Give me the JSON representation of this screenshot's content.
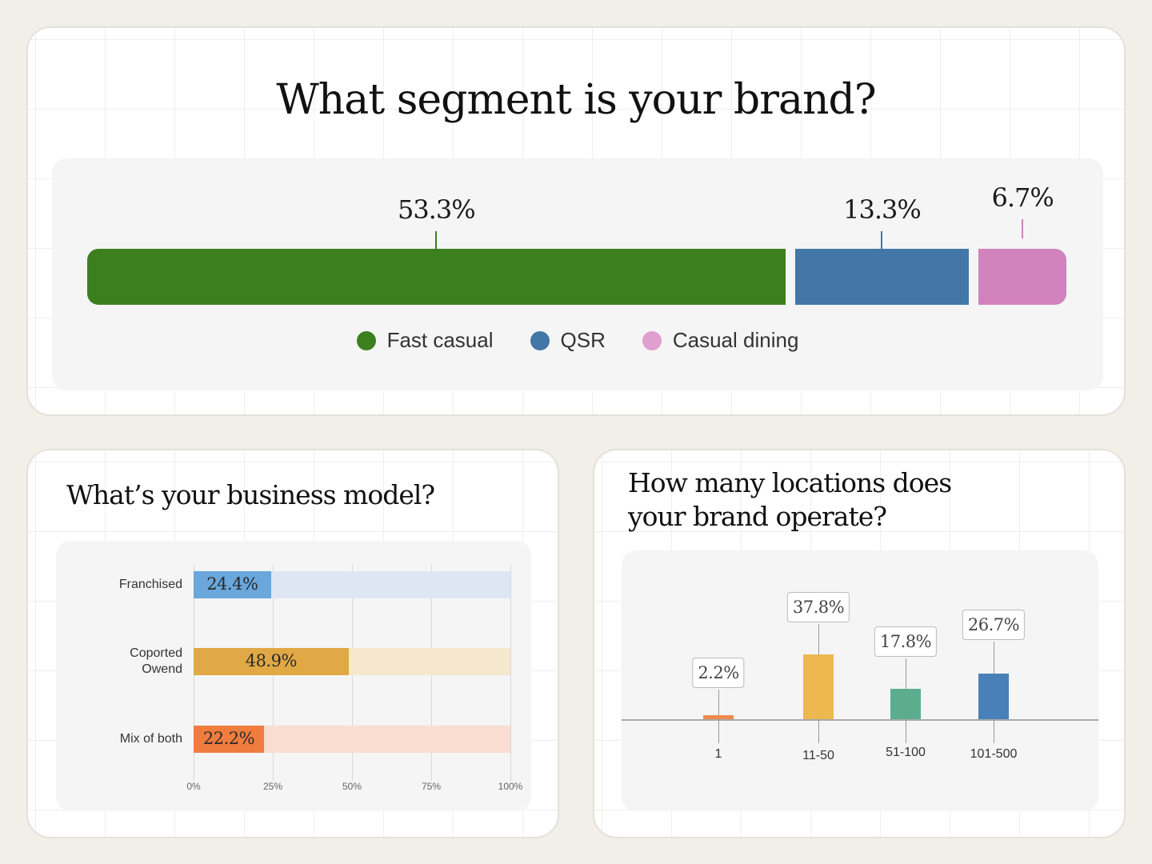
{
  "segment": {
    "title": "What segment is your brand?",
    "chart_data": {
      "type": "bar",
      "categories": [
        "Fast casual",
        "QSR",
        "Casual dining"
      ],
      "values": [
        53.3,
        13.3,
        6.7
      ],
      "labels": [
        "53.3%",
        "13.3%",
        "6.7%"
      ],
      "colors": [
        "#3c7f1e",
        "#4277a8",
        "#d083bc"
      ],
      "legend_colors": [
        "#3c7f1e",
        "#4277a8",
        "#e09fcf"
      ]
    }
  },
  "business_model": {
    "title": "What’s your business model?",
    "chart_data": {
      "type": "bar",
      "orientation": "horizontal",
      "categories": [
        "Franchised",
        "Coported Owend",
        "Mix of both"
      ],
      "category_lines": [
        [
          "Franchised"
        ],
        [
          "Coported",
          "Owend"
        ],
        [
          "Mix of both"
        ]
      ],
      "values": [
        24.4,
        48.9,
        22.2
      ],
      "labels": [
        "24.4%",
        "48.9%",
        "22.2%"
      ],
      "fill_colors": [
        "#6aa7dc",
        "#e0a946",
        "#f07c3e"
      ],
      "track_colors": [
        "#dde6f2",
        "#f6e7cf",
        "#f8ddd0"
      ],
      "xticks": [
        "0%",
        "25%",
        "50%",
        "75%",
        "100%"
      ],
      "xlim": [
        0,
        100
      ]
    }
  },
  "locations": {
    "title_lines": [
      "How many locations does",
      "your brand operate?"
    ],
    "chart_data": {
      "type": "bar",
      "categories": [
        "1",
        "11-50",
        "51-100",
        "101-500"
      ],
      "values": [
        2.2,
        37.8,
        17.8,
        26.7
      ],
      "labels": [
        "2.2%",
        "37.8%",
        "17.8%",
        "26.7%"
      ],
      "colors": [
        "#ef8a4c",
        "#ecb84f",
        "#5cad8e",
        "#4a80b8"
      ]
    }
  }
}
